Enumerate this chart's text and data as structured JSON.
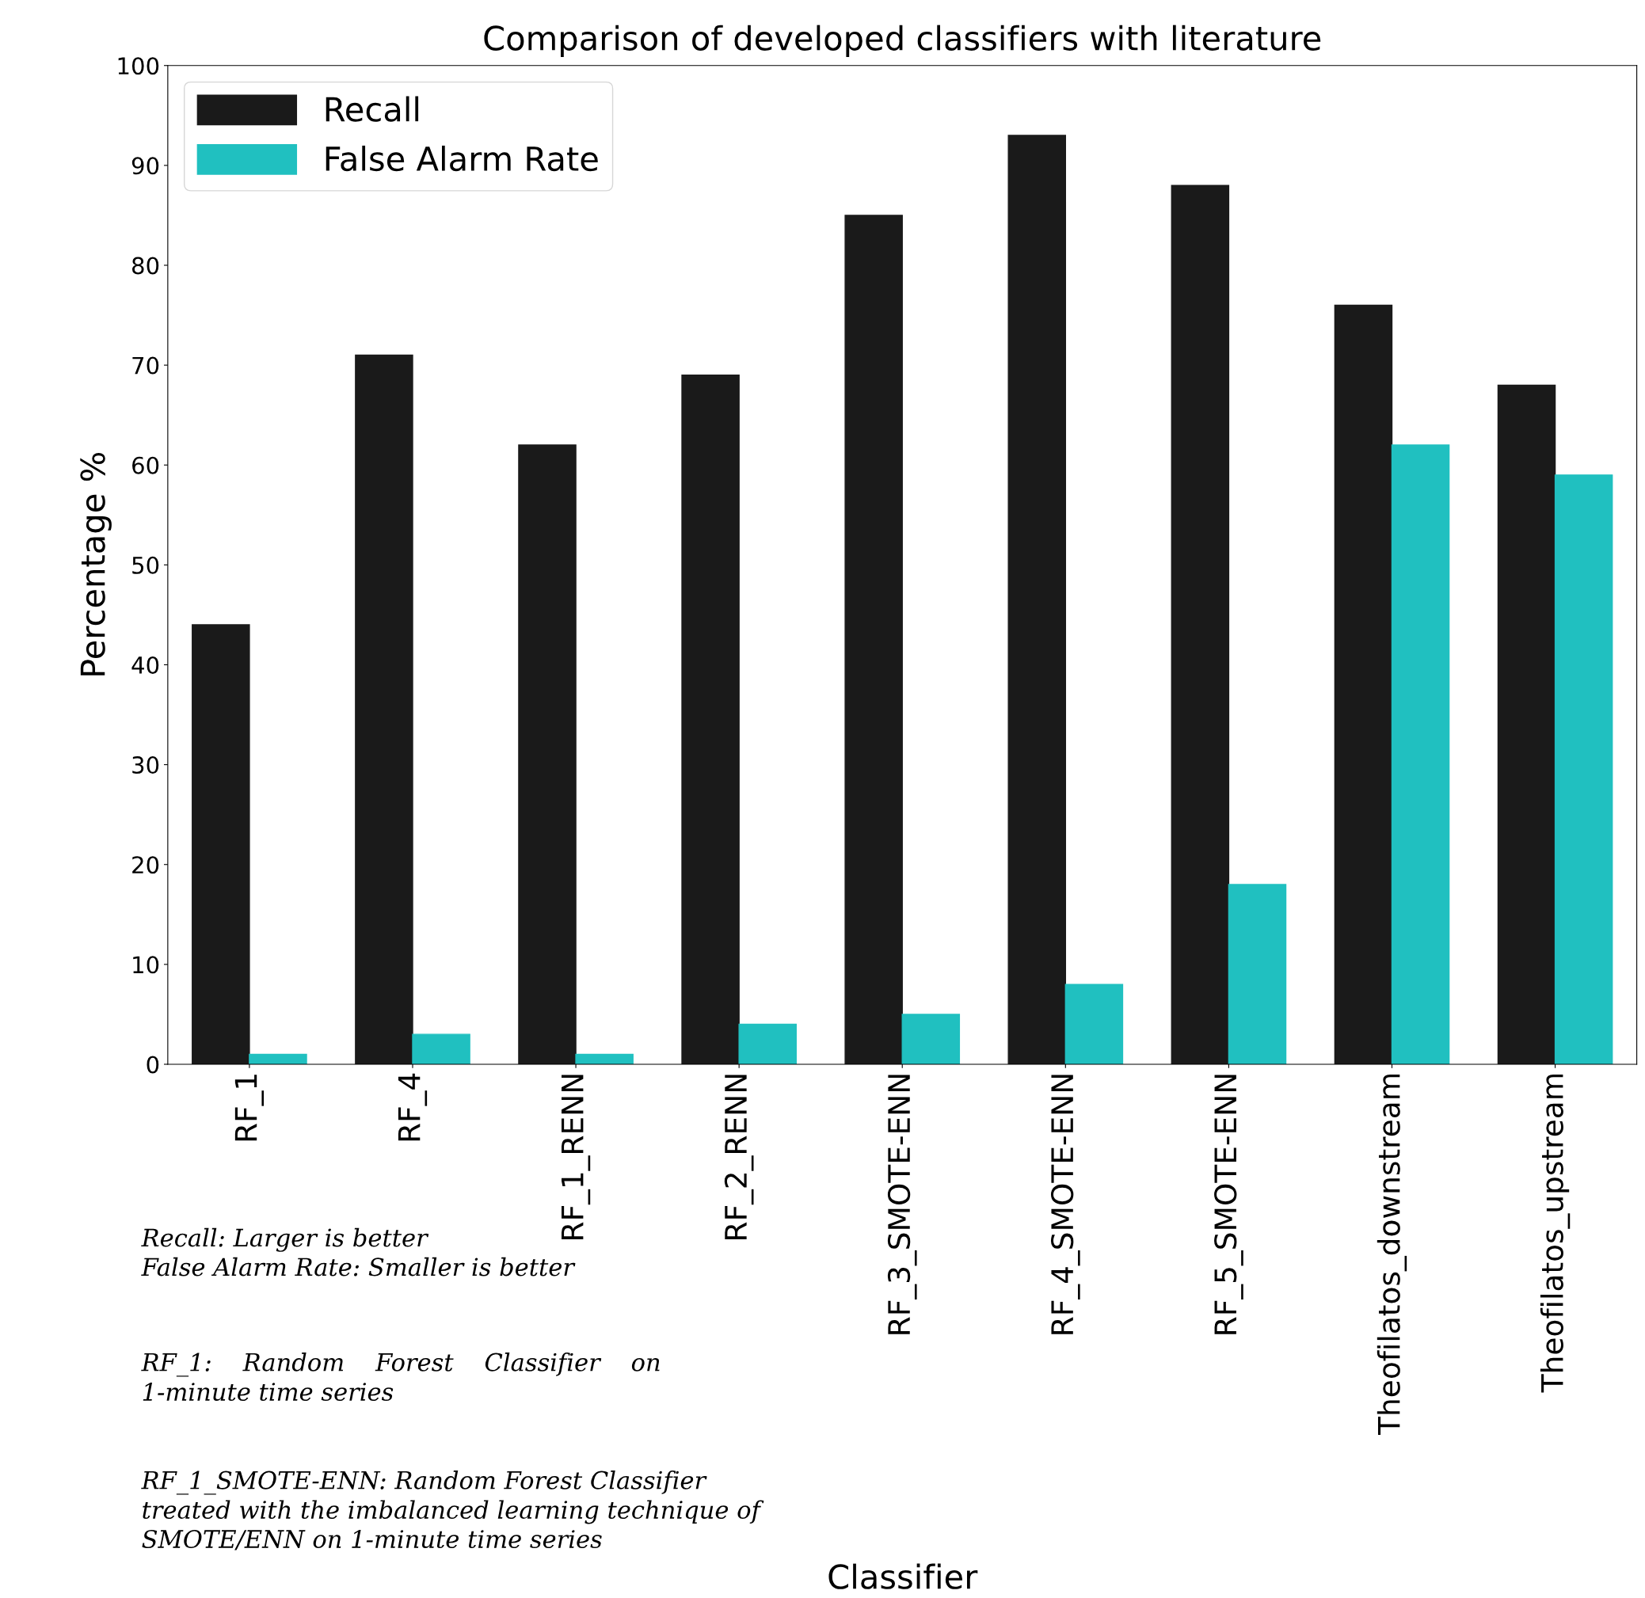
{
  "chart_data": {
    "type": "bar",
    "title": "Comparison of developed classifiers with literature",
    "xlabel": "Classifier",
    "ylabel": "Percentage %",
    "categories": [
      "RF_1",
      "RF_4",
      "RF_1_RENN",
      "RF_2_RENN",
      "RF_3_SMOTE-ENN",
      "RF_4_SMOTE-ENN",
      "RF_5_SMOTE-ENN",
      "Theofilatos_downstream",
      "Theofilatos_upstream"
    ],
    "series": [
      {
        "name": "Recall",
        "color": "#1a1a1a",
        "values": [
          44,
          71,
          62,
          69,
          85,
          93,
          88,
          76,
          68
        ]
      },
      {
        "name": "False Alarm Rate",
        "color": "#20c0c0",
        "values": [
          1,
          3,
          1,
          4,
          5,
          8,
          18,
          62,
          59
        ]
      }
    ],
    "ylim": [
      0,
      100
    ],
    "yticks": [
      0,
      10,
      20,
      30,
      40,
      50,
      60,
      70,
      80,
      90,
      100
    ],
    "grid": false,
    "legend": "top left",
    "annotations": [
      "Recall: Larger is better\nFalse Alarm Rate: Smaller is better",
      "RF_1:    Random    Forest    Classifier    on\n1-minute time series",
      "RF_1_SMOTE-ENN: Random Forest Classifier\ntreated with the imbalanced learning technique of\nSMOTE/ENN on 1-minute time series"
    ]
  }
}
